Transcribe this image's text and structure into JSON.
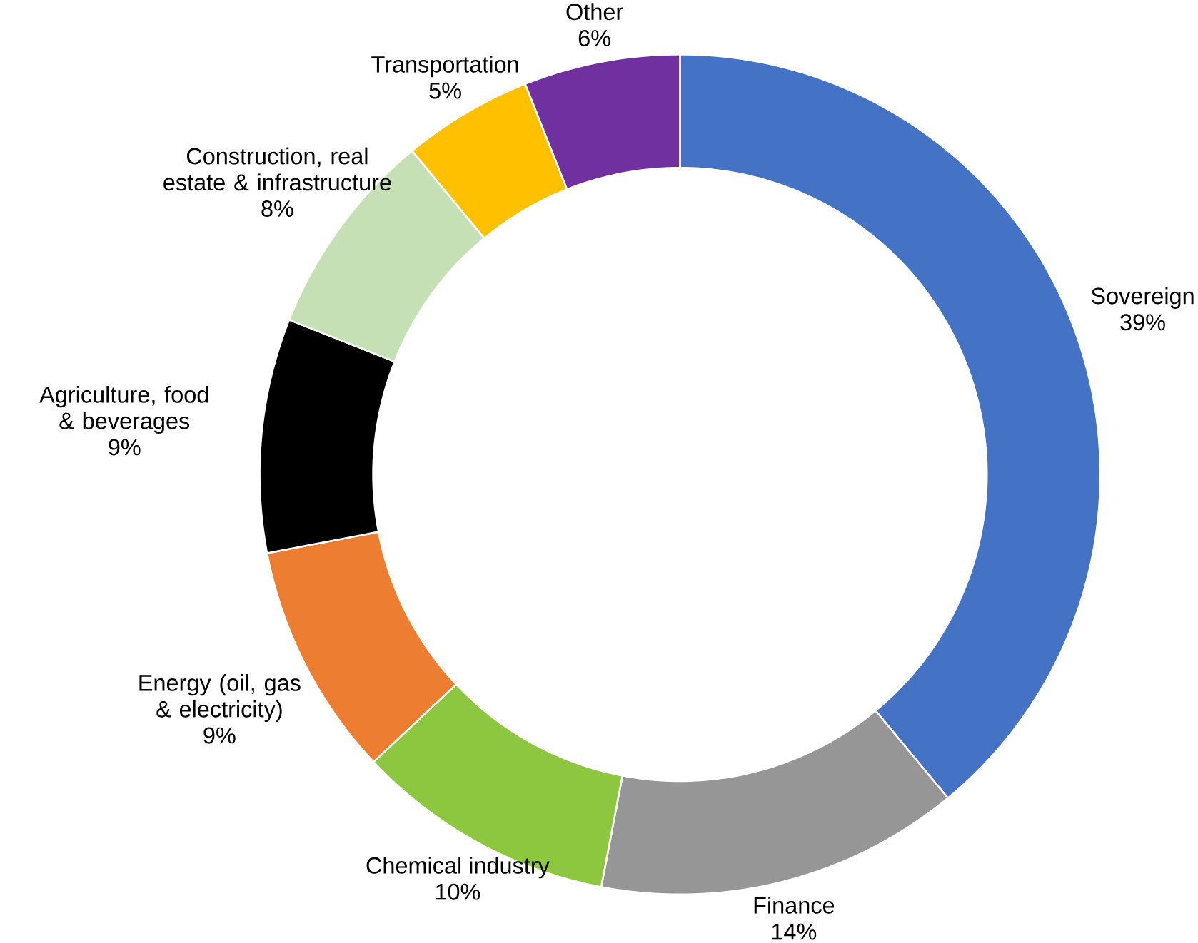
{
  "chart_data": {
    "type": "donut",
    "categories": [
      "Sovereign",
      "Finance",
      "Chemical industry",
      "Energy (oil, gas & electricity)",
      "Agriculture, food & beverages",
      "Construction, real estate & infrastructure",
      "Transportation",
      "Other"
    ],
    "values": [
      39,
      14,
      10,
      9,
      9,
      8,
      5,
      6
    ],
    "value_labels": [
      "39%",
      "14%",
      "10%",
      "9%",
      "9%",
      "8%",
      "5%",
      "6%"
    ],
    "colors": [
      "#4472c4",
      "#969696",
      "#8dc63f",
      "#ed7d31",
      "#000000",
      "#c5e0b4",
      "#ffc000",
      "#7030a0"
    ]
  }
}
